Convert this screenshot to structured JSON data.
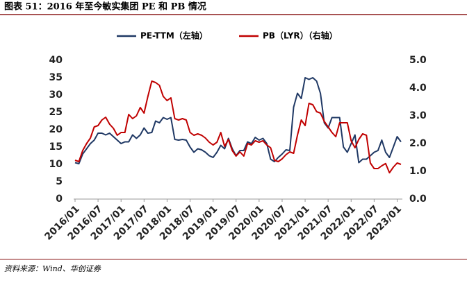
{
  "chart_data": {
    "type": "line",
    "title": "图表 51：2016 年至今敏实集团 PE 和 PB 情况",
    "source": "资料来源：Wind、华创证券",
    "categories": [
      "2016/01",
      null,
      null,
      null,
      null,
      null,
      "2016/07",
      null,
      null,
      null,
      null,
      null,
      "2017/01",
      null,
      null,
      null,
      null,
      null,
      "2017/07",
      null,
      null,
      null,
      null,
      null,
      "2018/01",
      null,
      null,
      null,
      null,
      null,
      "2018/07",
      null,
      null,
      null,
      null,
      null,
      "2019/01",
      null,
      null,
      null,
      null,
      null,
      "2019/07",
      null,
      null,
      null,
      null,
      null,
      "2020/01",
      null,
      null,
      null,
      null,
      null,
      "2020/07",
      null,
      null,
      null,
      null,
      null,
      "2021/01",
      null,
      null,
      null,
      null,
      null,
      "2021/07",
      null,
      null,
      null,
      null,
      null,
      "2022/01",
      null,
      null,
      null,
      null,
      null,
      "2022/07",
      null,
      null,
      null,
      null,
      null,
      "2023/01",
      null
    ],
    "series": [
      {
        "name": "PE-TTM（左轴）",
        "color": "#1f3864",
        "axis": "y",
        "values": [
          10.5,
          10.2,
          13,
          14.5,
          16,
          17,
          19,
          19,
          18.5,
          19,
          18,
          17,
          16,
          16.5,
          16.5,
          18.5,
          17.5,
          18.5,
          20.5,
          19,
          19.2,
          22.5,
          22,
          23.5,
          23,
          23.5,
          17.2,
          17,
          17.2,
          17,
          15,
          13.5,
          14.5,
          14.2,
          13.5,
          12.5,
          12,
          13.5,
          15.5,
          14.5,
          17.5,
          14.5,
          12.5,
          14,
          14,
          16.5,
          16,
          17.8,
          17,
          17.5,
          16,
          11.5,
          10.8,
          12,
          13,
          14.2,
          14,
          26.5,
          30.5,
          29,
          35,
          34.5,
          35,
          34,
          30.5,
          22,
          20.5,
          23.5,
          23.5,
          23.5,
          15,
          13.5,
          16,
          18.5,
          10.5,
          11.5,
          11.5,
          12.5,
          13.5,
          14,
          17,
          13.5,
          12,
          15,
          18,
          16.5
        ]
      },
      {
        "name": "PB（LYR）（右轴）",
        "color": "#c00000",
        "axis": "y2",
        "values": [
          1.4,
          1.35,
          1.75,
          2.0,
          2.2,
          2.6,
          2.65,
          2.85,
          2.95,
          2.7,
          2.55,
          2.3,
          2.4,
          2.4,
          3.05,
          2.9,
          3.0,
          3.3,
          3.1,
          3.7,
          4.25,
          4.2,
          4.1,
          3.7,
          3.55,
          3.65,
          2.9,
          2.85,
          2.9,
          2.85,
          2.4,
          2.3,
          2.35,
          2.3,
          2.2,
          2.05,
          1.95,
          2.05,
          2.4,
          1.9,
          2.15,
          1.75,
          1.55,
          1.7,
          1.55,
          2.0,
          1.95,
          2.1,
          2.05,
          2.1,
          1.95,
          1.85,
          1.4,
          1.35,
          1.45,
          1.6,
          1.7,
          1.65,
          2.3,
          2.85,
          2.65,
          3.45,
          3.4,
          3.15,
          3.1,
          2.8,
          2.6,
          2.4,
          2.25,
          2.75,
          2.75,
          2.75,
          2.1,
          1.85,
          2.15,
          2.35,
          2.3,
          1.3,
          1.1,
          1.1,
          1.2,
          1.28,
          0.95,
          1.15,
          1.3,
          1.25
        ]
      }
    ],
    "ylim": [
      0,
      40
    ],
    "yticks": [
      0,
      5,
      10,
      15,
      20,
      25,
      30,
      35,
      40
    ],
    "y2lim": [
      0,
      5
    ],
    "y2ticks": [
      {
        "value": 0,
        "label": "0.0"
      },
      {
        "value": 1,
        "label": "1.0"
      },
      {
        "value": 2,
        "label": "2.0"
      },
      {
        "value": 3,
        "label": "3.0"
      },
      {
        "value": 4,
        "label": "4.0"
      },
      {
        "value": 5,
        "label": "5.0"
      }
    ],
    "grid": false
  }
}
